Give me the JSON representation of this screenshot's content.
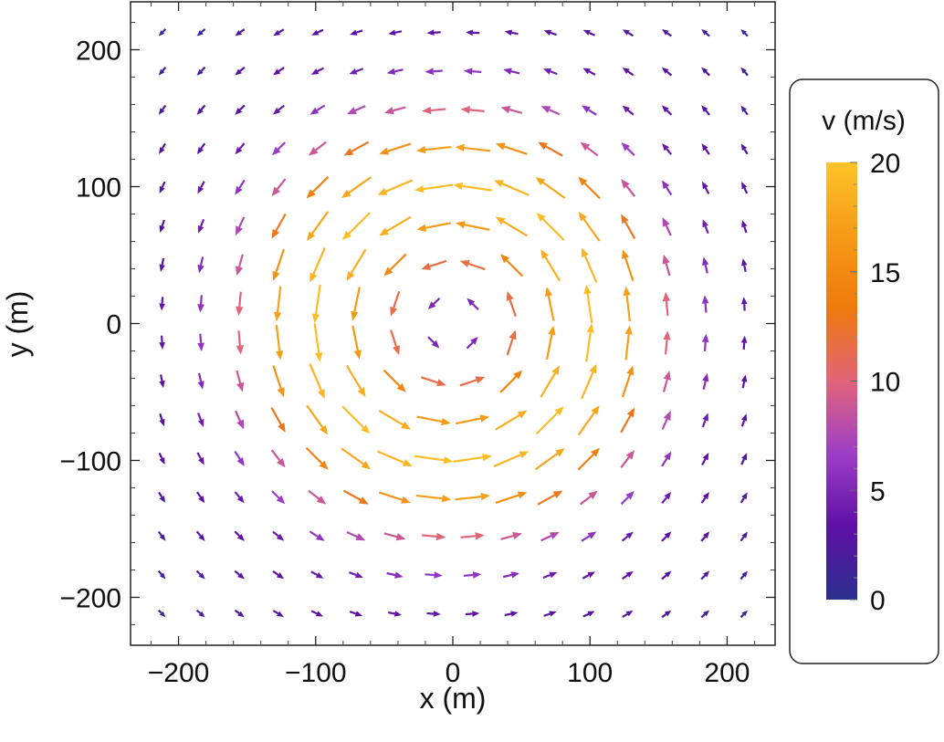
{
  "chart_data": {
    "type": "vector-field",
    "title": "",
    "xlabel": "x (m)",
    "ylabel": "y (m)",
    "xlim": [
      -235,
      235
    ],
    "ylim": [
      -235,
      235
    ],
    "xticks": [
      -200,
      -100,
      0,
      100,
      200
    ],
    "yticks": [
      -200,
      -100,
      0,
      100,
      200
    ],
    "x_tick_labels": [
      "−200",
      "−100",
      "0",
      "100",
      "200"
    ],
    "y_tick_labels": [
      "−200",
      "−100",
      "0",
      "100",
      "200"
    ],
    "grid": false,
    "field": {
      "description": "counter-clockwise vortex (velocity perpendicular to radius)",
      "rotation": "counter-clockwise",
      "grid_spacing": 28.3,
      "grid_range": [
        -212,
        212
      ],
      "peak_speed": 20,
      "peak_radius": 100,
      "speed_samples": [
        {
          "radius": 28,
          "speed": 7
        },
        {
          "radius": 50,
          "speed": 13
        },
        {
          "radius": 80,
          "speed": 18
        },
        {
          "radius": 100,
          "speed": 19.5
        },
        {
          "radius": 130,
          "speed": 17
        },
        {
          "radius": 160,
          "speed": 9
        },
        {
          "radius": 200,
          "speed": 4
        },
        {
          "radius": 300,
          "speed": 1
        }
      ]
    },
    "legend": {
      "title": "v (m/s)",
      "placement": "right",
      "range": [
        0,
        20
      ],
      "ticks": [
        0,
        5,
        10,
        15,
        20
      ],
      "tick_labels": [
        "0",
        "5",
        "10",
        "15",
        "20"
      ],
      "colormap": [
        "#2b2f8e",
        "#5d10a3",
        "#9c3ec8",
        "#e2647a",
        "#ee7a0c",
        "#f59a17",
        "#fec329"
      ]
    }
  }
}
